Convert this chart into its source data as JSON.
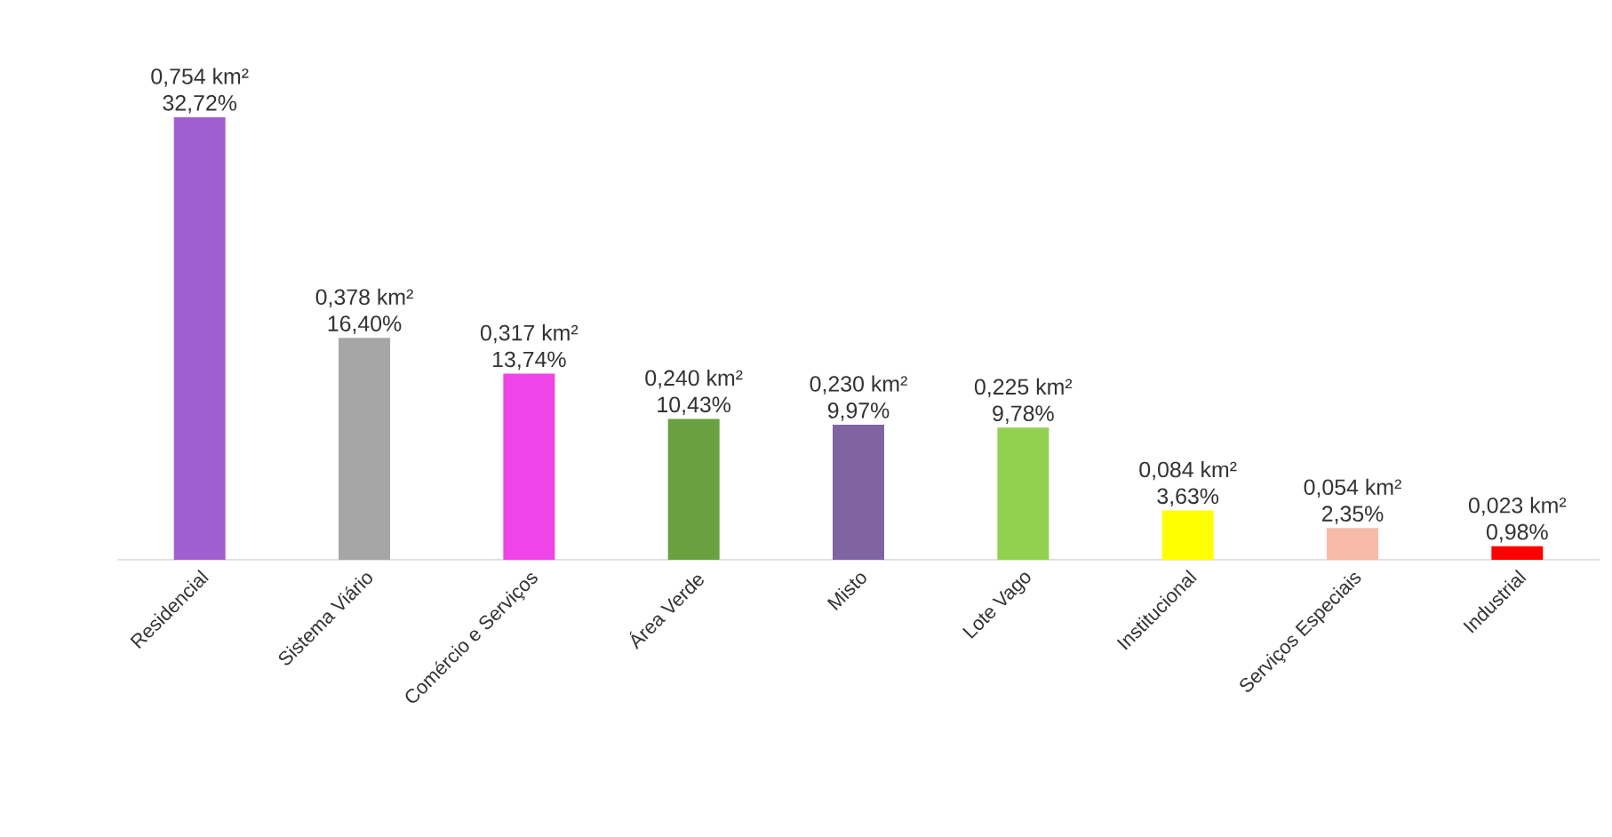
{
  "chart_data": {
    "type": "bar",
    "categories": [
      "Residencial",
      "Sistema Viário",
      "Comércio e Serviços",
      "Área Verde",
      "Misto",
      "Lote Vago",
      "Institucional",
      "Serviços Especiais",
      "Industrial"
    ],
    "values": [
      0.754,
      0.378,
      0.317,
      0.24,
      0.23,
      0.225,
      0.084,
      0.054,
      0.023
    ],
    "colors": [
      "#a05fcf",
      "#a6a6a6",
      "#ee44e8",
      "#69a140",
      "#8064a2",
      "#92d050",
      "#ffff00",
      "#f8bba8",
      "#ff0000"
    ],
    "value_labels": [
      "0,754 km²",
      "0,378 km²",
      "0,317 km²",
      "0,240 km²",
      "0,230 km²",
      "0,225 km²",
      "0,084 km²",
      "0,054 km²",
      "0,023 km²"
    ],
    "annotations": [
      "32,72%",
      "16,40%",
      "13,74%",
      "10,43%",
      "9,97%",
      "9,78%",
      "3,63%",
      "2,35%",
      "0,98%"
    ]
  }
}
